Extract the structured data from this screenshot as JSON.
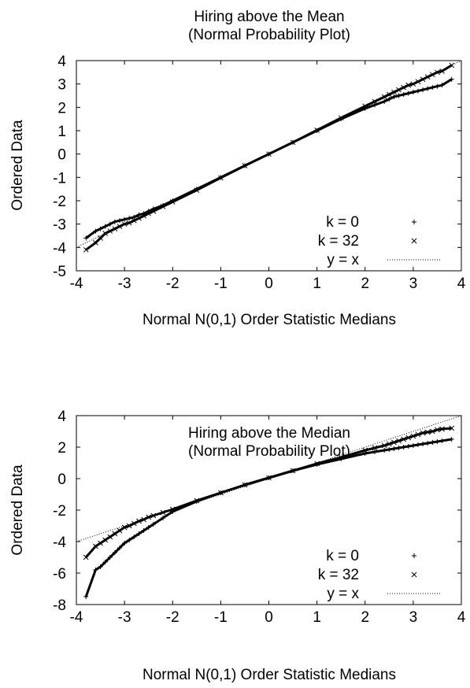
{
  "chart_data": [
    {
      "type": "scatter",
      "title": "Hiring above the Mean",
      "subtitle": "(Normal Probability Plot)",
      "xlabel": "Normal N(0,1) Order Statistic Medians",
      "ylabel": "Ordered Data",
      "xlim": [
        -4,
        4
      ],
      "ylim": [
        -5,
        4
      ],
      "xticks": [
        "-4",
        "-3",
        "-2",
        "-1",
        "0",
        "1",
        "2",
        "3",
        "4"
      ],
      "yticks": [
        "-5",
        "-4",
        "-3",
        "-2",
        "-1",
        "0",
        "1",
        "2",
        "3",
        "4"
      ],
      "grid": false,
      "legend_position": "bottom-right",
      "series": [
        {
          "name": "k = 0",
          "marker": "plus",
          "x": [
            -3.8,
            -3.6,
            -3.5,
            -3.4,
            -3.3,
            -3.2,
            -3.1,
            -3.0,
            -2.9,
            -2.8,
            -2.7,
            -2.6,
            -2.5,
            -2.4,
            -2.2,
            -2.0,
            -1.5,
            -1.0,
            -0.5,
            0.0,
            0.5,
            1.0,
            1.5,
            2.0,
            2.2,
            2.4,
            2.5,
            2.6,
            2.7,
            2.8,
            2.9,
            3.0,
            3.1,
            3.2,
            3.3,
            3.4,
            3.5,
            3.6,
            3.8
          ],
          "y": [
            -3.6,
            -3.3,
            -3.2,
            -3.1,
            -3.0,
            -2.9,
            -2.85,
            -2.8,
            -2.75,
            -2.7,
            -2.6,
            -2.55,
            -2.45,
            -2.35,
            -2.2,
            -2.0,
            -1.5,
            -1.0,
            -0.5,
            0.0,
            0.5,
            1.0,
            1.5,
            1.95,
            2.1,
            2.25,
            2.35,
            2.45,
            2.5,
            2.55,
            2.6,
            2.65,
            2.7,
            2.75,
            2.8,
            2.85,
            2.9,
            2.95,
            3.2
          ]
        },
        {
          "name": "k = 32",
          "marker": "cross",
          "x": [
            -3.8,
            -3.6,
            -3.5,
            -3.4,
            -3.3,
            -3.2,
            -3.1,
            -3.0,
            -2.9,
            -2.8,
            -2.7,
            -2.6,
            -2.5,
            -2.4,
            -2.2,
            -2.0,
            -1.5,
            -1.0,
            -0.5,
            0.0,
            0.5,
            1.0,
            1.5,
            2.0,
            2.2,
            2.4,
            2.5,
            2.6,
            2.7,
            2.8,
            2.9,
            3.0,
            3.1,
            3.2,
            3.3,
            3.4,
            3.5,
            3.6,
            3.8
          ],
          "y": [
            -4.1,
            -3.8,
            -3.6,
            -3.4,
            -3.3,
            -3.2,
            -3.1,
            -3.0,
            -2.95,
            -2.85,
            -2.75,
            -2.65,
            -2.55,
            -2.45,
            -2.25,
            -2.05,
            -1.55,
            -1.02,
            -0.5,
            0.0,
            0.5,
            1.02,
            1.55,
            2.05,
            2.25,
            2.45,
            2.55,
            2.65,
            2.75,
            2.85,
            2.95,
            3.0,
            3.1,
            3.2,
            3.3,
            3.4,
            3.5,
            3.55,
            3.8
          ]
        },
        {
          "name": "y = x",
          "style": "dotted-line",
          "x": [
            -4,
            4
          ],
          "y": [
            -4,
            4
          ]
        }
      ]
    },
    {
      "type": "scatter",
      "title": "Hiring above the Median",
      "subtitle": "(Normal Probability Plot)",
      "xlabel": "Normal N(0,1) Order Statistic Medians",
      "ylabel": "Ordered Data",
      "xlim": [
        -4,
        4
      ],
      "ylim": [
        -8,
        4
      ],
      "xticks": [
        "-4",
        "-3",
        "-2",
        "-1",
        "0",
        "1",
        "2",
        "3",
        "4"
      ],
      "yticks": [
        "-8",
        "-6",
        "-4",
        "-2",
        "0",
        "2",
        "4"
      ],
      "grid": false,
      "legend_position": "bottom-right",
      "series": [
        {
          "name": "k = 0",
          "marker": "plus",
          "x": [
            -3.8,
            -3.6,
            -3.5,
            -3.4,
            -3.3,
            -3.2,
            -3.1,
            -3.0,
            -2.9,
            -2.8,
            -2.7,
            -2.6,
            -2.5,
            -2.4,
            -2.2,
            -2.0,
            -1.5,
            -1.0,
            -0.5,
            0.0,
            0.5,
            1.0,
            1.5,
            2.0,
            2.2,
            2.4,
            2.5,
            2.6,
            2.7,
            2.8,
            2.9,
            3.0,
            3.1,
            3.2,
            3.3,
            3.4,
            3.5,
            3.6,
            3.8
          ],
          "y": [
            -7.5,
            -5.8,
            -5.6,
            -5.3,
            -5.0,
            -4.7,
            -4.4,
            -4.1,
            -3.9,
            -3.7,
            -3.5,
            -3.3,
            -3.1,
            -2.9,
            -2.5,
            -2.1,
            -1.45,
            -0.9,
            -0.4,
            0.05,
            0.5,
            0.9,
            1.25,
            1.6,
            1.7,
            1.8,
            1.85,
            1.9,
            1.95,
            2.0,
            2.05,
            2.1,
            2.15,
            2.2,
            2.25,
            2.3,
            2.35,
            2.4,
            2.5
          ]
        },
        {
          "name": "k = 32",
          "marker": "cross",
          "x": [
            -3.8,
            -3.6,
            -3.5,
            -3.4,
            -3.3,
            -3.2,
            -3.1,
            -3.0,
            -2.9,
            -2.8,
            -2.7,
            -2.6,
            -2.5,
            -2.4,
            -2.2,
            -2.0,
            -1.5,
            -1.0,
            -0.5,
            0.0,
            0.5,
            1.0,
            1.5,
            2.0,
            2.2,
            2.4,
            2.5,
            2.6,
            2.7,
            2.8,
            2.9,
            3.0,
            3.1,
            3.2,
            3.3,
            3.4,
            3.5,
            3.6,
            3.8
          ],
          "y": [
            -5.0,
            -4.3,
            -4.1,
            -3.9,
            -3.7,
            -3.5,
            -3.3,
            -3.1,
            -3.0,
            -2.85,
            -2.7,
            -2.6,
            -2.45,
            -2.35,
            -2.15,
            -1.95,
            -1.4,
            -0.9,
            -0.4,
            0.05,
            0.5,
            0.95,
            1.35,
            1.8,
            1.95,
            2.1,
            2.2,
            2.3,
            2.4,
            2.5,
            2.6,
            2.7,
            2.8,
            2.9,
            2.95,
            3.0,
            3.1,
            3.15,
            3.2
          ]
        },
        {
          "name": "y = x",
          "style": "dotted-line",
          "x": [
            -4,
            4
          ],
          "y": [
            -4,
            4
          ]
        }
      ]
    }
  ]
}
